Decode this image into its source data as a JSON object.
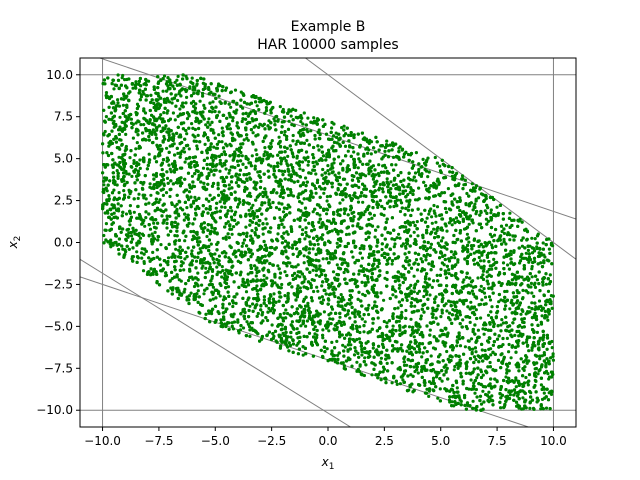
{
  "chart_data": {
    "type": "scatter",
    "title": "Example B",
    "subtitle": "HAR 10000 samples",
    "xlabel": "x",
    "xlabel_sub": "1",
    "ylabel": "x",
    "ylabel_sub": "2",
    "xlim": [
      -11,
      11
    ],
    "ylim": [
      -11,
      11
    ],
    "xticks": [
      -10,
      -7.5,
      -5,
      -2.5,
      0,
      2.5,
      5,
      7.5,
      10
    ],
    "yticks": [
      -10,
      -7.5,
      -5,
      -2.5,
      0,
      2.5,
      5,
      7.5,
      10
    ],
    "xtick_labels": [
      "−10.0",
      "−7.5",
      "−5.0",
      "−2.5",
      "0.0",
      "2.5",
      "5.0",
      "7.5",
      "10.0"
    ],
    "ytick_labels": [
      "−10.0",
      "−7.5",
      "−5.0",
      "−2.5",
      "0.0",
      "2.5",
      "5.0",
      "7.5",
      "10.0"
    ],
    "grid": false,
    "point_color": "#008000",
    "line_color": "#808080",
    "sample_count": 10000,
    "feasible_region": [
      [
        -10,
        0
      ],
      [
        -10,
        10
      ],
      [
        -6,
        10
      ],
      [
        5,
        5
      ],
      [
        10,
        0
      ],
      [
        10,
        -10
      ],
      [
        6.1,
        -10
      ],
      [
        -5,
        -5
      ]
    ],
    "constraint_lines": [
      {
        "points": [
          [
            -11,
            10
          ],
          [
            11,
            10
          ]
        ]
      },
      {
        "points": [
          [
            -11,
            -10
          ],
          [
            11,
            -10
          ]
        ]
      },
      {
        "points": [
          [
            -10,
            -11
          ],
          [
            -10,
            11
          ]
        ]
      },
      {
        "points": [
          [
            10,
            -11
          ],
          [
            10,
            11
          ]
        ]
      },
      {
        "points": [
          [
            -11,
            11.4
          ],
          [
            11,
            1.4
          ]
        ]
      },
      {
        "points": [
          [
            -11,
            -2.05
          ],
          [
            11,
            -11.95
          ]
        ]
      },
      {
        "points": [
          [
            -1,
            11
          ],
          [
            11,
            -1
          ]
        ]
      },
      {
        "points": [
          [
            -11,
            -1
          ],
          [
            1,
            -11
          ]
        ]
      }
    ]
  }
}
